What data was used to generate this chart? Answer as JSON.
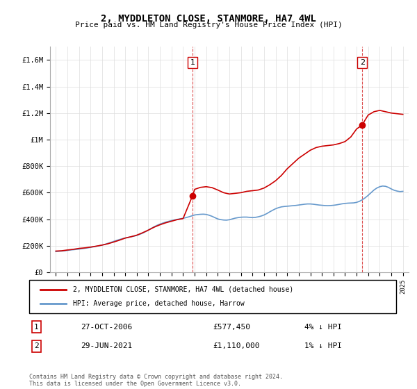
{
  "title": "2, MYDDLETON CLOSE, STANMORE, HA7 4WL",
  "subtitle": "Price paid vs. HM Land Registry's House Price Index (HPI)",
  "legend_line1": "2, MYDDLETON CLOSE, STANMORE, HA7 4WL (detached house)",
  "legend_line2": "HPI: Average price, detached house, Harrow",
  "annotation1_label": "1",
  "annotation1_date": "27-OCT-2006",
  "annotation1_price": "£577,450",
  "annotation1_hpi": "4% ↓ HPI",
  "annotation2_label": "2",
  "annotation2_date": "29-JUN-2021",
  "annotation2_price": "£1,110,000",
  "annotation2_hpi": "1% ↓ HPI",
  "footer": "Contains HM Land Registry data © Crown copyright and database right 2024.\nThis data is licensed under the Open Government Licence v3.0.",
  "sale1_x": 2006.82,
  "sale1_y": 577450,
  "sale2_x": 2021.49,
  "sale2_y": 1110000,
  "ylim_min": 0,
  "ylim_max": 1700000,
  "xlim_min": 1994.5,
  "xlim_max": 2025.5,
  "price_color": "#cc0000",
  "hpi_color": "#6699cc",
  "dashed_color": "#cc0000",
  "background_color": "#ffffff",
  "grid_color": "#dddddd",
  "yticks": [
    0,
    200000,
    400000,
    600000,
    800000,
    1000000,
    1200000,
    1400000,
    1600000
  ],
  "ytick_labels": [
    "£0",
    "£200K",
    "£400K",
    "£600K",
    "£800K",
    "£1M",
    "£1.2M",
    "£1.4M",
    "£1.6M"
  ],
  "xticks": [
    1995,
    1996,
    1997,
    1998,
    1999,
    2000,
    2001,
    2002,
    2003,
    2004,
    2005,
    2006,
    2007,
    2008,
    2009,
    2010,
    2011,
    2012,
    2013,
    2014,
    2015,
    2016,
    2017,
    2018,
    2019,
    2020,
    2021,
    2022,
    2023,
    2024,
    2025
  ],
  "hpi_years": [
    1995,
    1995.25,
    1995.5,
    1995.75,
    1996,
    1996.25,
    1996.5,
    1996.75,
    1997,
    1997.25,
    1997.5,
    1997.75,
    1998,
    1998.25,
    1998.5,
    1998.75,
    1999,
    1999.25,
    1999.5,
    1999.75,
    2000,
    2000.25,
    2000.5,
    2000.75,
    2001,
    2001.25,
    2001.5,
    2001.75,
    2002,
    2002.25,
    2002.5,
    2002.75,
    2003,
    2003.25,
    2003.5,
    2003.75,
    2004,
    2004.25,
    2004.5,
    2004.75,
    2005,
    2005.25,
    2005.5,
    2005.75,
    2006,
    2006.25,
    2006.5,
    2006.75,
    2007,
    2007.25,
    2007.5,
    2007.75,
    2008,
    2008.25,
    2008.5,
    2008.75,
    2009,
    2009.25,
    2009.5,
    2009.75,
    2010,
    2010.25,
    2010.5,
    2010.75,
    2011,
    2011.25,
    2011.5,
    2011.75,
    2012,
    2012.25,
    2012.5,
    2012.75,
    2013,
    2013.25,
    2013.5,
    2013.75,
    2014,
    2014.25,
    2014.5,
    2014.75,
    2015,
    2015.25,
    2015.5,
    2015.75,
    2016,
    2016.25,
    2016.5,
    2016.75,
    2017,
    2017.25,
    2017.5,
    2017.75,
    2018,
    2018.25,
    2018.5,
    2018.75,
    2019,
    2019.25,
    2019.5,
    2019.75,
    2020,
    2020.25,
    2020.5,
    2020.75,
    2021,
    2021.25,
    2021.5,
    2021.75,
    2022,
    2022.25,
    2022.5,
    2022.75,
    2023,
    2023.25,
    2023.5,
    2023.75,
    2024,
    2024.25,
    2024.5,
    2024.75,
    2025
  ],
  "hpi_values": [
    156000,
    158000,
    160000,
    162000,
    165000,
    168000,
    170000,
    172000,
    175000,
    178000,
    181000,
    184000,
    188000,
    192000,
    196000,
    200000,
    205000,
    211000,
    218000,
    225000,
    233000,
    240000,
    247000,
    253000,
    258000,
    263000,
    268000,
    272000,
    278000,
    286000,
    295000,
    306000,
    318000,
    331000,
    343000,
    354000,
    363000,
    371000,
    378000,
    384000,
    390000,
    395000,
    399000,
    403000,
    407000,
    412000,
    418000,
    425000,
    432000,
    435000,
    437000,
    438000,
    436000,
    430000,
    422000,
    412000,
    402000,
    397000,
    394000,
    393000,
    396000,
    402000,
    408000,
    412000,
    415000,
    416000,
    416000,
    414000,
    412000,
    414000,
    418000,
    424000,
    432000,
    443000,
    456000,
    468000,
    479000,
    487000,
    493000,
    496000,
    498000,
    500000,
    502000,
    504000,
    507000,
    510000,
    513000,
    515000,
    515000,
    513000,
    510000,
    507000,
    505000,
    503000,
    502000,
    503000,
    505000,
    508000,
    512000,
    516000,
    519000,
    521000,
    522000,
    523000,
    527000,
    535000,
    547000,
    562000,
    580000,
    600000,
    620000,
    635000,
    645000,
    650000,
    648000,
    640000,
    628000,
    618000,
    612000,
    608000,
    610000
  ],
  "price_years": [
    1995,
    1995.5,
    1996,
    1996.5,
    1997,
    1997.5,
    1998,
    1998.5,
    1999,
    1999.5,
    2000,
    2000.5,
    2001,
    2001.5,
    2002,
    2002.5,
    2003,
    2003.5,
    2004,
    2004.5,
    2005,
    2005.5,
    2006,
    2006.82,
    2007,
    2007.5,
    2008,
    2008.5,
    2009,
    2009.5,
    2010,
    2010.5,
    2011,
    2011.5,
    2012,
    2012.5,
    2013,
    2013.5,
    2014,
    2014.5,
    2015,
    2015.5,
    2016,
    2016.5,
    2017,
    2017.5,
    2018,
    2018.5,
    2019,
    2019.5,
    2020,
    2020.5,
    2021,
    2021.49,
    2021.75,
    2022,
    2022.5,
    2023,
    2023.5,
    2024,
    2024.5,
    2025
  ],
  "price_values": [
    160000,
    162000,
    168000,
    173000,
    180000,
    184000,
    190000,
    197000,
    205000,
    215000,
    228000,
    242000,
    258000,
    268000,
    280000,
    298000,
    318000,
    340000,
    358000,
    373000,
    385000,
    397000,
    405000,
    577450,
    625000,
    640000,
    645000,
    638000,
    620000,
    600000,
    590000,
    595000,
    600000,
    610000,
    615000,
    620000,
    635000,
    660000,
    690000,
    730000,
    780000,
    820000,
    860000,
    890000,
    920000,
    940000,
    950000,
    955000,
    960000,
    970000,
    985000,
    1020000,
    1080000,
    1110000,
    1150000,
    1185000,
    1210000,
    1220000,
    1210000,
    1200000,
    1195000,
    1190000
  ]
}
